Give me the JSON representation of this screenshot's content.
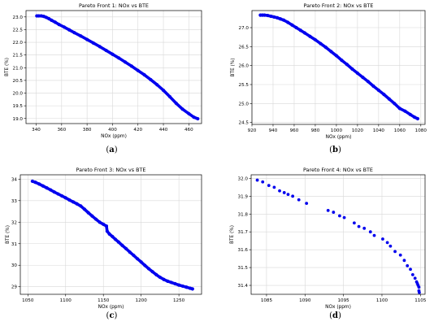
{
  "subfigure_labels": [
    {
      "open": "(",
      "letter": "a",
      "close": ")"
    },
    {
      "open": "(",
      "letter": "b",
      "close": ")"
    },
    {
      "open": "(",
      "letter": "c",
      "close": ")"
    },
    {
      "open": "(",
      "letter": "d",
      "close": ")"
    }
  ],
  "colors": {
    "points": "#0000ee",
    "grid": "#d8d8d8",
    "axis": "#000000"
  },
  "chart_data": [
    {
      "type": "scatter",
      "title": "Pareto Front 1: NOx vs BTE",
      "xlabel": "NOx (ppm)",
      "ylabel": "BTE (%)",
      "xlim": [
        332,
        470
      ],
      "ylim": [
        18.8,
        23.25
      ],
      "xticks": [
        340,
        360,
        380,
        400,
        420,
        440,
        460
      ],
      "yticks": [
        19.0,
        19.5,
        20.0,
        20.5,
        21.0,
        21.5,
        22.0,
        22.5,
        23.0
      ],
      "ytick_decimals": 1,
      "grid": true,
      "x": [
        340.5,
        342,
        344,
        346,
        348,
        350,
        352,
        355,
        358,
        362,
        366,
        370,
        375,
        380,
        385,
        390,
        395,
        400,
        405,
        410,
        415,
        420,
        425,
        430,
        435,
        440,
        445,
        450,
        455,
        460,
        464,
        467
      ],
      "y": [
        23.04,
        23.04,
        23.04,
        23.02,
        22.98,
        22.93,
        22.87,
        22.79,
        22.7,
        22.6,
        22.49,
        22.38,
        22.25,
        22.11,
        21.97,
        21.83,
        21.68,
        21.53,
        21.38,
        21.22,
        21.06,
        20.89,
        20.72,
        20.53,
        20.33,
        20.11,
        19.86,
        19.6,
        19.37,
        19.19,
        19.05,
        18.99
      ]
    },
    {
      "type": "scatter",
      "title": "Pareto Front 2: NOx vs BTE",
      "xlabel": "NOx (ppm)",
      "ylabel": "BTE (%)",
      "xlim": [
        920,
        1084
      ],
      "ylim": [
        24.45,
        27.45
      ],
      "xticks": [
        920,
        940,
        960,
        980,
        1000,
        1020,
        1040,
        1060,
        1080
      ],
      "yticks": [
        24.5,
        25.0,
        25.5,
        26.0,
        26.5,
        27.0
      ],
      "ytick_decimals": 1,
      "grid": true,
      "x": [
        928,
        930,
        932,
        935,
        938,
        941,
        944,
        947,
        950,
        954,
        958,
        962,
        966,
        970,
        975,
        980,
        985,
        990,
        995,
        1000,
        1005,
        1010,
        1015,
        1020,
        1025,
        1030,
        1035,
        1040,
        1045,
        1050,
        1055,
        1060,
        1065,
        1070,
        1074,
        1077
      ],
      "y": [
        27.33,
        27.33,
        27.33,
        27.32,
        27.3,
        27.28,
        27.26,
        27.23,
        27.2,
        27.14,
        27.07,
        27.0,
        26.93,
        26.86,
        26.77,
        26.68,
        26.58,
        26.48,
        26.37,
        26.26,
        26.14,
        26.03,
        25.91,
        25.8,
        25.69,
        25.58,
        25.46,
        25.35,
        25.24,
        25.12,
        25.0,
        24.87,
        24.8,
        24.71,
        24.64,
        24.6
      ]
    },
    {
      "type": "scatter",
      "title": "Pareto Front 3: NOx vs BTE",
      "xlabel": "NOx (ppm)",
      "ylabel": "BTE (%)",
      "xlim": [
        1040,
        1280
      ],
      "ylim": [
        28.65,
        34.2
      ],
      "xticks": [
        1050,
        1100,
        1150,
        1200,
        1250
      ],
      "yticks": [
        29,
        30,
        31,
        32,
        33,
        34
      ],
      "ytick_decimals": 0,
      "grid": true,
      "x": [
        1056,
        1060,
        1065,
        1070,
        1075,
        1080,
        1085,
        1090,
        1095,
        1100,
        1105,
        1110,
        1115,
        1120,
        1125,
        1130,
        1135,
        1140,
        1145,
        1150,
        1154,
        1155,
        1158,
        1162,
        1166,
        1170,
        1175,
        1180,
        1185,
        1190,
        1195,
        1200,
        1205,
        1210,
        1215,
        1220,
        1225,
        1230,
        1235,
        1240,
        1245,
        1250,
        1255,
        1260,
        1265,
        1268
      ],
      "y": [
        33.9,
        33.85,
        33.77,
        33.68,
        33.59,
        33.5,
        33.4,
        33.31,
        33.22,
        33.13,
        33.03,
        32.94,
        32.85,
        32.75,
        32.6,
        32.44,
        32.29,
        32.14,
        32.0,
        31.9,
        31.82,
        31.58,
        31.45,
        31.33,
        31.2,
        31.08,
        30.92,
        30.77,
        30.61,
        30.46,
        30.3,
        30.15,
        29.99,
        29.84,
        29.7,
        29.56,
        29.44,
        29.34,
        29.26,
        29.2,
        29.14,
        29.08,
        29.03,
        28.98,
        28.93,
        28.9
      ]
    },
    {
      "type": "scatter",
      "title": "Pareto Front 4: NOx vs BTE",
      "xlabel": "NOx (ppm)",
      "ylabel": "BTE (%)",
      "xlim": [
        1083,
        1105.6
      ],
      "ylim": [
        31.35,
        32.02
      ],
      "xticks": [
        1085,
        1090,
        1095,
        1100,
        1105
      ],
      "yticks": [
        31.4,
        31.5,
        31.6,
        31.7,
        31.8,
        31.9,
        32.0
      ],
      "ytick_decimals": 1,
      "grid": true,
      "x": [
        1083.8,
        1084.5,
        1085.3,
        1086.0,
        1086.7,
        1087.3,
        1087.8,
        1088.4,
        1089.2,
        1090.2,
        1093.0,
        1093.7,
        1094.5,
        1095.1,
        1096.4,
        1097.0,
        1097.7,
        1098.5,
        1099.0,
        1100.1,
        1100.7,
        1101.1,
        1101.7,
        1102.4,
        1102.9,
        1103.3,
        1103.7,
        1104.0,
        1104.3,
        1104.5,
        1104.6,
        1104.7,
        1104.8,
        1104.8,
        1104.85
      ],
      "y": [
        31.99,
        31.98,
        31.96,
        31.95,
        31.93,
        31.92,
        31.91,
        31.9,
        31.88,
        31.86,
        31.82,
        31.81,
        31.79,
        31.78,
        31.75,
        31.73,
        31.72,
        31.7,
        31.68,
        31.66,
        31.64,
        31.62,
        31.59,
        31.57,
        31.54,
        31.51,
        31.49,
        31.46,
        31.44,
        31.42,
        31.41,
        31.4,
        31.39,
        31.37,
        31.36
      ]
    }
  ]
}
